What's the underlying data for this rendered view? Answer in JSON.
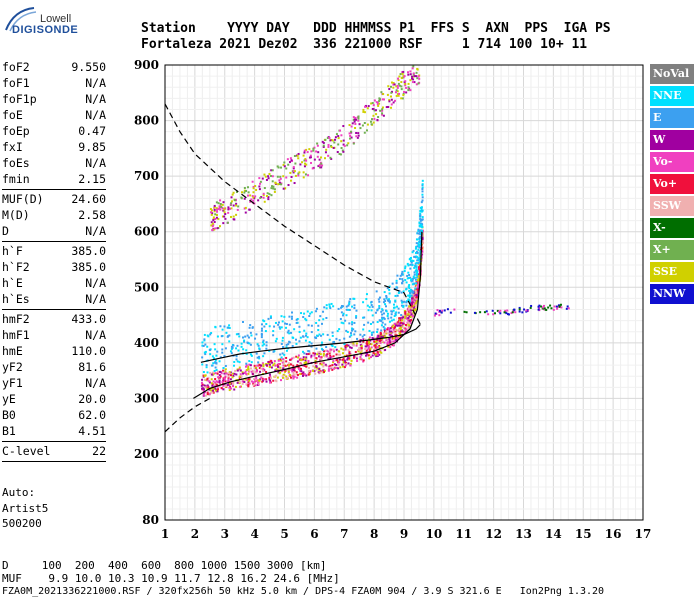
{
  "logo": {
    "top": "Lowell",
    "main": "DIGISONDE"
  },
  "header": {
    "line1": "Station    YYYY DAY   DDD HHMMSS P1  FFS S  AXN  PPS  IGA PS",
    "line2": "Fortaleza 2021 Dez02  336 221000 RSF     1 714 100 10+ 11"
  },
  "params": [
    {
      "k": "foF2",
      "v": "9.550"
    },
    {
      "k": "foF1",
      "v": "N/A"
    },
    {
      "k": "foF1p",
      "v": "N/A"
    },
    {
      "k": "foE",
      "v": "N/A"
    },
    {
      "k": "foEp",
      "v": "0.47"
    },
    {
      "k": "fxI",
      "v": "9.85"
    },
    {
      "k": "foEs",
      "v": "N/A"
    },
    {
      "k": "fmin",
      "v": "2.15"
    },
    {
      "k": "MUF(D)",
      "v": "24.60"
    },
    {
      "k": "M(D)",
      "v": "2.58"
    },
    {
      "k": "D",
      "v": "N/A"
    },
    {
      "k": "h`F",
      "v": "385.0"
    },
    {
      "k": "h`F2",
      "v": "385.0"
    },
    {
      "k": "h`E",
      "v": "N/A"
    },
    {
      "k": "h`Es",
      "v": "N/A"
    },
    {
      "k": "hmF2",
      "v": "433.0"
    },
    {
      "k": "hmF1",
      "v": "N/A"
    },
    {
      "k": "hmE",
      "v": "110.0"
    },
    {
      "k": "yF2",
      "v": "81.6"
    },
    {
      "k": "yF1",
      "v": "N/A"
    },
    {
      "k": "yE",
      "v": "20.0"
    },
    {
      "k": "B0",
      "v": "62.0"
    },
    {
      "k": "B1",
      "v": "4.51"
    },
    {
      "k": "C-level",
      "v": "22"
    }
  ],
  "auto": {
    "l1": "Auto:",
    "l2": "Artist5",
    "l3": "500200"
  },
  "legend": [
    {
      "label": "NoVal",
      "color": "#808080"
    },
    {
      "label": "NNE",
      "color": "#00e0ff"
    },
    {
      "label": "E",
      "color": "#3ca0f0"
    },
    {
      "label": "W",
      "color": "#a000a0"
    },
    {
      "label": "Vo-",
      "color": "#f040c0"
    },
    {
      "label": "Vo+",
      "color": "#f0103c"
    },
    {
      "label": "SSW",
      "color": "#f0b0b0"
    },
    {
      "label": "X-",
      "color": "#006e00"
    },
    {
      "label": "X+",
      "color": "#70b050"
    },
    {
      "label": "SSE",
      "color": "#d0d000"
    },
    {
      "label": "NNW",
      "color": "#1010d0"
    }
  ],
  "chart_data": {
    "type": "scatter",
    "x_ticks": [
      "1",
      "2",
      "3",
      "4",
      "5",
      "6",
      "7",
      "8",
      "9",
      "10",
      "11",
      "12",
      "13",
      "14",
      "15",
      "16",
      "17"
    ],
    "y_ticks": [
      "80",
      "200",
      "300",
      "400",
      "500",
      "600",
      "700",
      "800",
      "900"
    ],
    "xlim": [
      1,
      17
    ],
    "ylim": [
      80,
      900
    ],
    "grid": true,
    "legend_position": "right",
    "profile_solid": [
      [
        2.2,
        365
      ],
      [
        2.8,
        372
      ],
      [
        3.5,
        380
      ],
      [
        4.2,
        385
      ],
      [
        5.0,
        390
      ],
      [
        6.0,
        395
      ],
      [
        7.0,
        400
      ],
      [
        7.8,
        405
      ],
      [
        8.5,
        410
      ],
      [
        9.0,
        415
      ],
      [
        9.4,
        425
      ],
      [
        9.55,
        433
      ]
    ],
    "trace_solid": [
      [
        1.95,
        300
      ],
      [
        2.5,
        318
      ],
      [
        3.2,
        330
      ],
      [
        4.0,
        340
      ],
      [
        5.0,
        352
      ],
      [
        6.0,
        365
      ],
      [
        7.0,
        375
      ],
      [
        8.0,
        385
      ],
      [
        8.7,
        400
      ],
      [
        9.2,
        425
      ],
      [
        9.45,
        460
      ],
      [
        9.55,
        520
      ],
      [
        9.6,
        600
      ]
    ],
    "profile_dashed": [
      [
        1.0,
        830
      ],
      [
        1.5,
        780
      ],
      [
        2.0,
        740
      ],
      [
        3.0,
        690
      ],
      [
        4.0,
        650
      ],
      [
        5.0,
        610
      ],
      [
        6.0,
        575
      ],
      [
        7.0,
        540
      ],
      [
        8.0,
        510
      ],
      [
        9.0,
        490
      ],
      [
        9.55,
        433
      ]
    ],
    "profile_dashed_low": [
      [
        1.0,
        240
      ],
      [
        1.5,
        265
      ],
      [
        2.0,
        285
      ],
      [
        2.5,
        300
      ]
    ],
    "f_layer_trace": [
      [
        2.2,
        325
      ],
      [
        3.0,
        335
      ],
      [
        4.0,
        345
      ],
      [
        5.0,
        355
      ],
      [
        6.0,
        365
      ],
      [
        7.0,
        378
      ],
      [
        8.0,
        395
      ],
      [
        8.6,
        415
      ],
      [
        9.1,
        445
      ],
      [
        9.35,
        480
      ],
      [
        9.5,
        530
      ],
      [
        9.6,
        600
      ]
    ],
    "f_layer_2hop": [
      [
        2.5,
        625
      ],
      [
        3.0,
        640
      ],
      [
        4.0,
        670
      ],
      [
        5.0,
        705
      ],
      [
        6.0,
        735
      ],
      [
        7.0,
        770
      ],
      [
        8.0,
        820
      ],
      [
        8.8,
        860
      ],
      [
        9.5,
        895
      ]
    ],
    "extra_traces": [
      [
        10.0,
        455
      ],
      [
        10.5,
        460
      ],
      [
        12.0,
        455
      ],
      [
        12.5,
        458
      ],
      [
        13.0,
        462
      ],
      [
        13.5,
        465
      ],
      [
        14.0,
        465
      ],
      [
        14.5,
        467
      ]
    ]
  },
  "footer": {
    "l1": "D     100  200  400  600  800 1000 1500 3000 [km]",
    "l2": "MUF    9.9 10.0 10.3 10.9 11.7 12.8 16.2 24.6 [MHz]",
    "l3": "FZA0M_2021336221000.RSF / 320fx256h 50 kHz 5.0 km / DPS-4 FZA0M 904 / 3.9 S 321.6 E   Ion2Png 1.3.20"
  }
}
